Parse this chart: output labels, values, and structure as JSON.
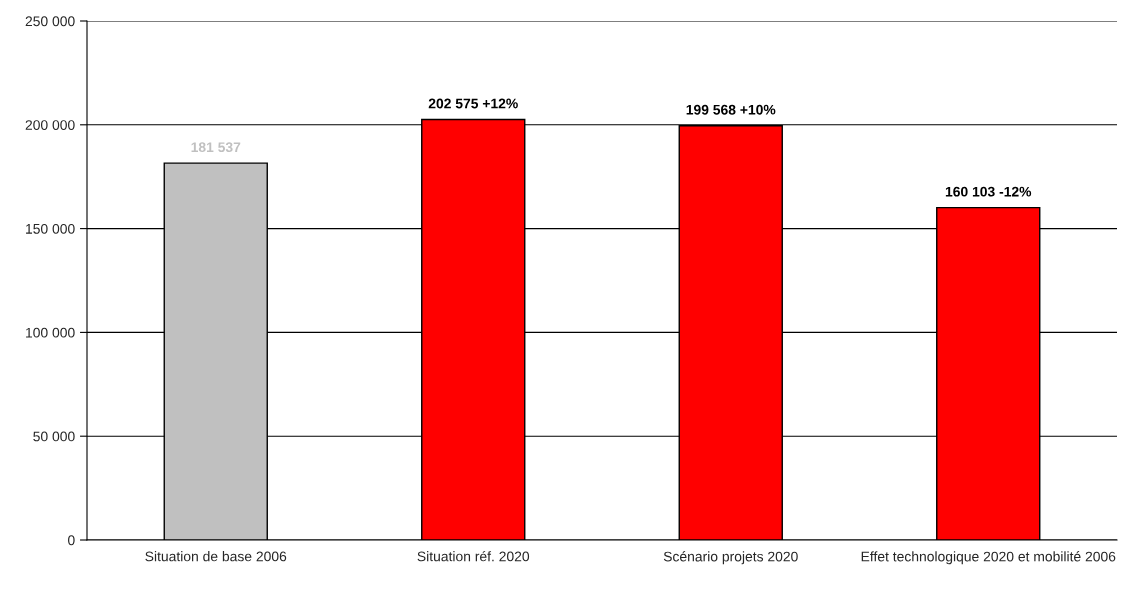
{
  "chart_data": {
    "type": "bar",
    "categories": [
      "Situation de base 2006",
      "Situation réf. 2020",
      "Scénario projets 2020",
      "Effet technologique 2020 et mobilité 2006"
    ],
    "values": [
      181537,
      202575,
      199568,
      160103
    ],
    "colors": [
      "#c0c0c0",
      "#ff0000",
      "#ff0000",
      "#ff0000"
    ],
    "value_labels": [
      "181 537",
      "202 575 +12%",
      "199 568 +10%",
      "160 103 -12%"
    ],
    "ylim": [
      0,
      250000
    ],
    "yticks": [
      {
        "value": 0,
        "label": "0"
      },
      {
        "value": 50000,
        "label": "50 000"
      },
      {
        "value": 100000,
        "label": "100 000"
      },
      {
        "value": 150000,
        "label": "150 000"
      },
      {
        "value": 200000,
        "label": "200 000"
      },
      {
        "value": 250000,
        "label": "250 000"
      }
    ],
    "grid": "y"
  }
}
